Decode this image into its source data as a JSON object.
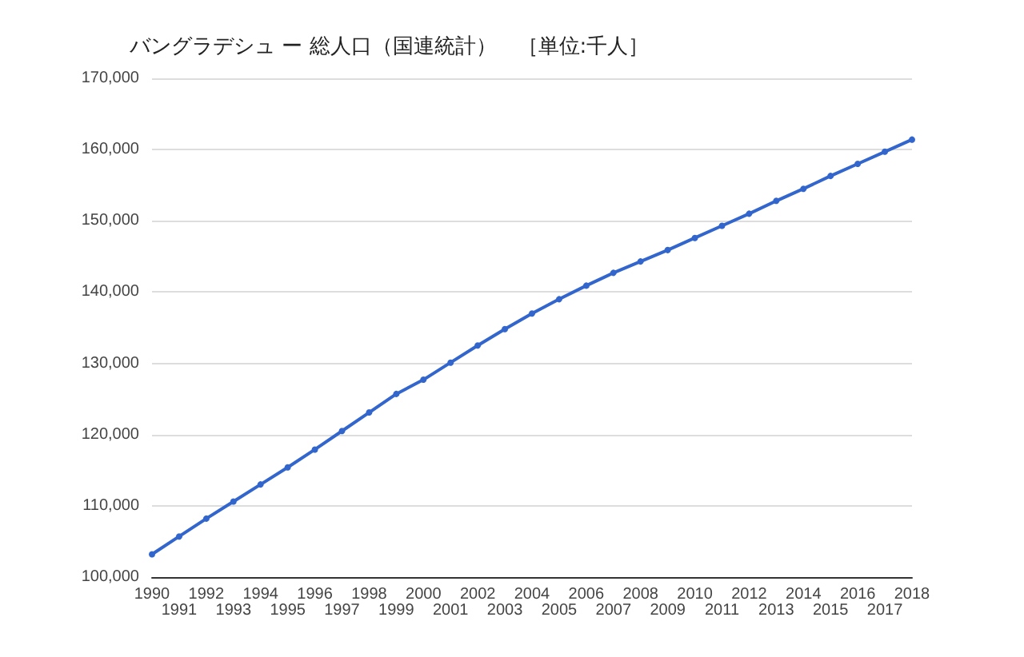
{
  "chart_data": {
    "type": "line",
    "title": "バングラデシュ ー 総人口（国連統計）　［単位:千人］",
    "categories": [
      "1990",
      "1991",
      "1992",
      "1993",
      "1994",
      "1995",
      "1996",
      "1997",
      "1998",
      "1999",
      "2000",
      "2001",
      "2002",
      "2003",
      "2004",
      "2005",
      "2006",
      "2007",
      "2008",
      "2009",
      "2010",
      "2011",
      "2012",
      "2013",
      "2014",
      "2015",
      "2016",
      "2017",
      "2018"
    ],
    "series": [
      {
        "color": "#3366cc",
        "values": [
          103200,
          105700,
          108200,
          110600,
          113000,
          115400,
          117900,
          120500,
          123100,
          125700,
          127700,
          130100,
          132500,
          134800,
          137000,
          139000,
          140900,
          142700,
          144300,
          145900,
          147600,
          149300,
          151000,
          152800,
          154500,
          156300,
          158000,
          159700,
          161400
        ]
      }
    ],
    "ylim": [
      100000,
      170000
    ],
    "yticks": [
      {
        "value": 100000,
        "label": "100,000"
      },
      {
        "value": 110000,
        "label": "110,000"
      },
      {
        "value": 120000,
        "label": "120,000"
      },
      {
        "value": 130000,
        "label": "130,000"
      },
      {
        "value": 140000,
        "label": "140,000"
      },
      {
        "value": 150000,
        "label": "150,000"
      },
      {
        "value": 160000,
        "label": "160,000"
      },
      {
        "value": 170000,
        "label": "170,000"
      }
    ],
    "grid": "y",
    "marker": "circle",
    "line_style": "solid"
  }
}
